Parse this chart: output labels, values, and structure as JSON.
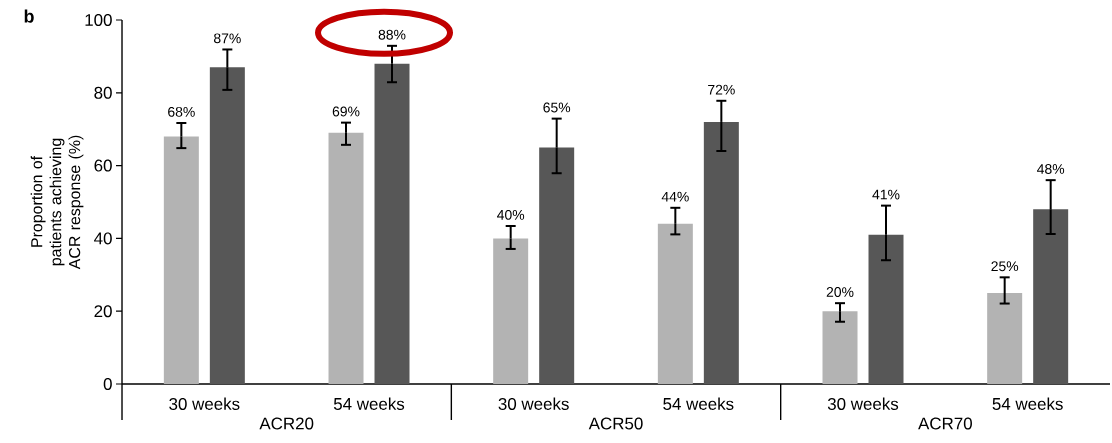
{
  "chart_data": {
    "type": "bar",
    "title": "b",
    "ylabel": "Proportion of patients achieving ACR response (%)",
    "categories": [
      "30 weeks",
      "54 weeks",
      "30 weeks",
      "54 weeks",
      "30 weeks",
      "54 weeks"
    ],
    "annotations": [
      "ACR20",
      "ACR50",
      "ACR70"
    ],
    "series": [
      {
        "color": "#b3b3b3",
        "values": [
          68,
          69,
          40,
          44,
          20,
          25
        ],
        "errors": [
          [
            64.8,
            71.7
          ],
          [
            65.7,
            71.8
          ],
          [
            37.1,
            43.4
          ],
          [
            41.1,
            48.4
          ],
          [
            17.1,
            22.2
          ],
          [
            22.1,
            29.3
          ]
        ],
        "value_labels": [
          "68%",
          "69%",
          "40%",
          "44%",
          "20%",
          "25%"
        ]
      },
      {
        "color": "#575757",
        "values": [
          87,
          88,
          65,
          72,
          41,
          48
        ],
        "errors": [
          [
            80.8,
            91.9
          ],
          [
            82.9,
            92.9
          ],
          [
            57.9,
            72.9
          ],
          [
            64.0,
            77.8
          ],
          [
            34.0,
            49.0
          ],
          [
            41.2,
            56.0
          ]
        ],
        "value_labels": [
          "87%",
          "88%",
          "65%",
          "72%",
          "41%",
          "48%"
        ]
      }
    ],
    "ylim": [
      0,
      100
    ],
    "yticks": [
      0,
      20,
      40,
      60,
      80,
      100
    ],
    "grid": false
  }
}
